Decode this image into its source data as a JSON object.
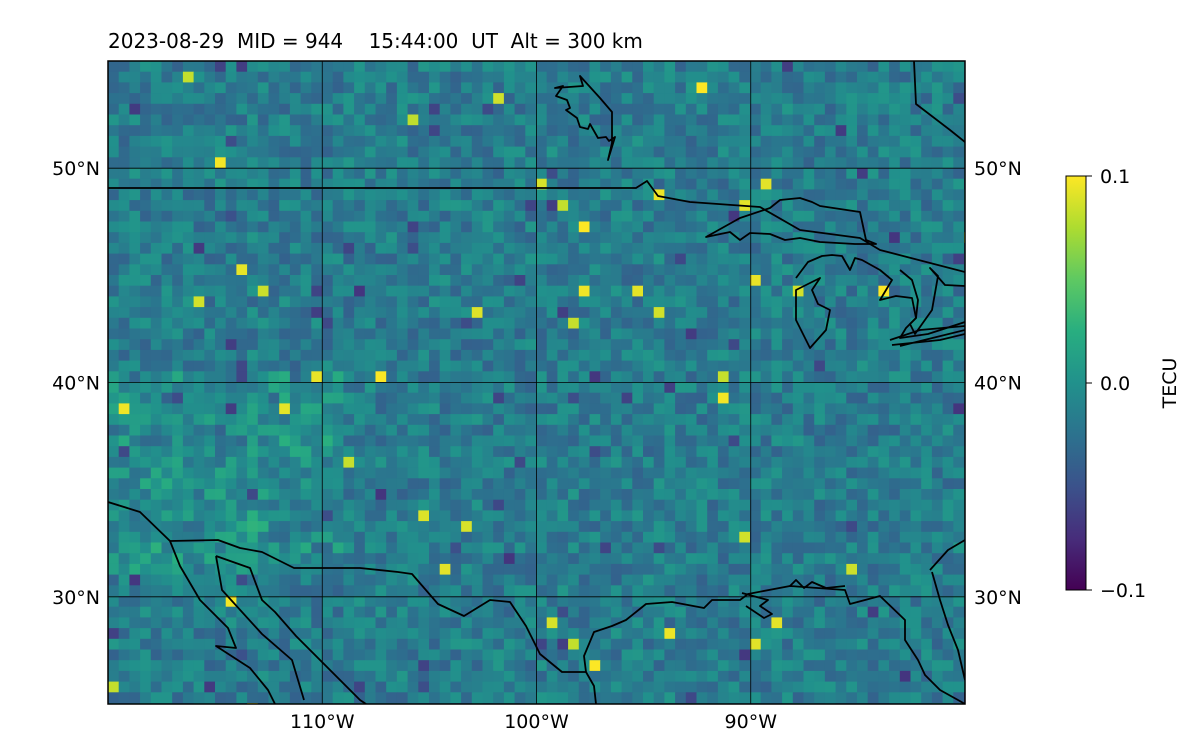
{
  "title": "2023-08-29  MID = 944    15:44:00  UT  Alt = 300 km",
  "map": {
    "lon_range": [
      -120,
      -80
    ],
    "lat_range": [
      25,
      55
    ],
    "grid": true,
    "lat_ticks": [
      {
        "value": 50,
        "label": "50°N"
      },
      {
        "value": 40,
        "label": "40°N"
      },
      {
        "value": 30,
        "label": "30°N"
      }
    ],
    "lon_ticks": [
      {
        "value": -110,
        "label": "110°W"
      },
      {
        "value": -100,
        "label": "100°W"
      },
      {
        "value": -90,
        "label": "90°W"
      }
    ],
    "colormap": "viridis"
  },
  "colorbar": {
    "label": "TECU",
    "min": -0.1,
    "max": 0.1,
    "ticks": [
      {
        "value": 0.1,
        "label": "0.1"
      },
      {
        "value": 0.0,
        "label": "0.0"
      },
      {
        "value": -0.1,
        "label": "−0.1"
      }
    ]
  },
  "colors": {
    "viridis_low": "#440154",
    "viridis_mid": "#21918c",
    "viridis_high": "#fde725",
    "coastline": "#000000"
  }
}
